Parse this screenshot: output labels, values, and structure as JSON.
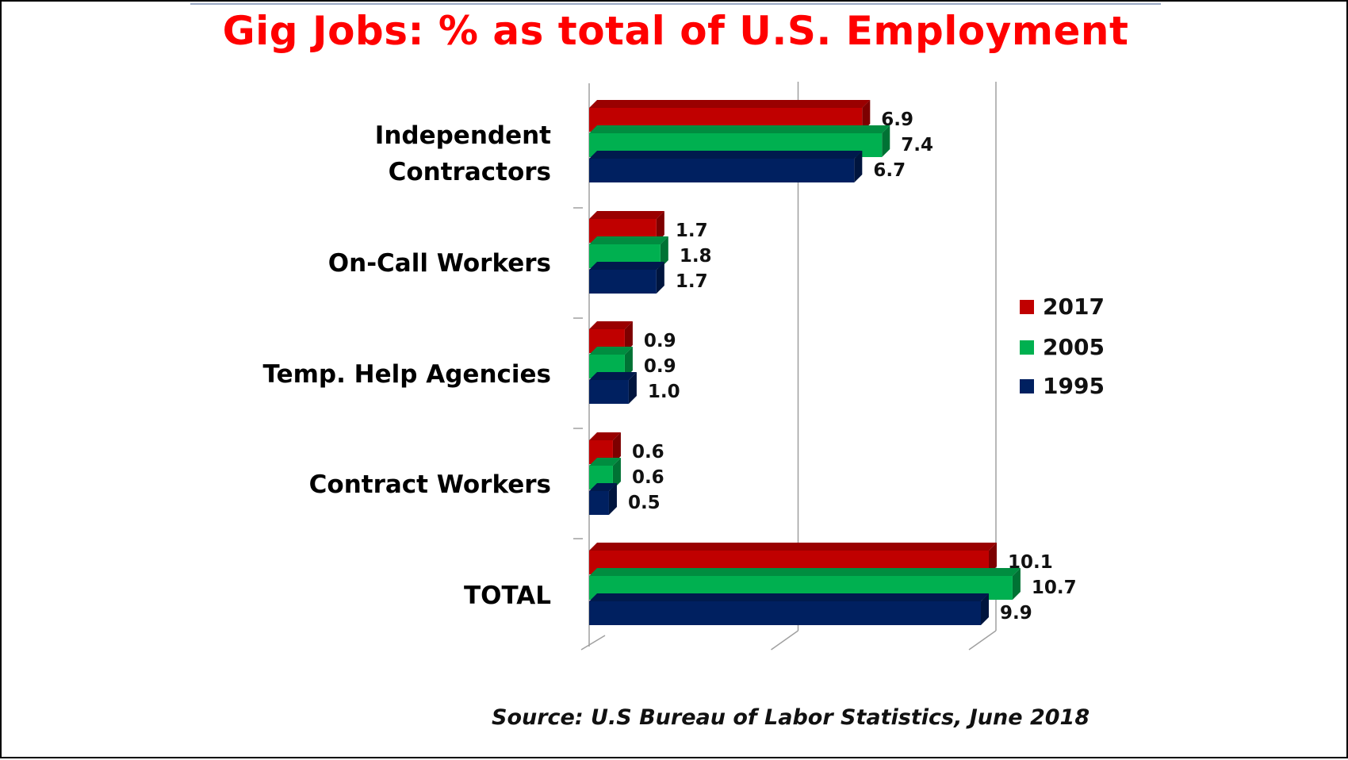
{
  "chart_data": {
    "type": "bar",
    "orientation": "horizontal",
    "title": "Gig Jobs: % as total of U.S. Employment",
    "categories": [
      "Independent Contractors",
      "On-Call Workers",
      "Temp. Help Agencies",
      "Contract Workers",
      "TOTAL"
    ],
    "series": [
      {
        "name": "2017",
        "color": "#c00000",
        "values": [
          6.9,
          1.7,
          0.9,
          0.6,
          10.1
        ],
        "labels": [
          "6.9",
          "1.7",
          "0.9",
          "0.6",
          "10.1"
        ]
      },
      {
        "name": "2005",
        "color": "#00b050",
        "values": [
          7.4,
          1.8,
          0.9,
          0.6,
          10.7
        ],
        "labels": [
          "7.4",
          "1.8",
          "0.9",
          "0.6",
          "10.7"
        ]
      },
      {
        "name": "1995",
        "color": "#002060",
        "values": [
          6.7,
          1.7,
          1.0,
          0.5,
          9.9
        ],
        "labels": [
          "6.7",
          "1.7",
          "1.0",
          "0.5",
          "9.9"
        ]
      }
    ],
    "xlim": [
      0,
      11
    ],
    "grid": true,
    "three_d": true,
    "legend_position": "right"
  },
  "source": "Source:  U.S Bureau of Labor Statistics, June 2018"
}
